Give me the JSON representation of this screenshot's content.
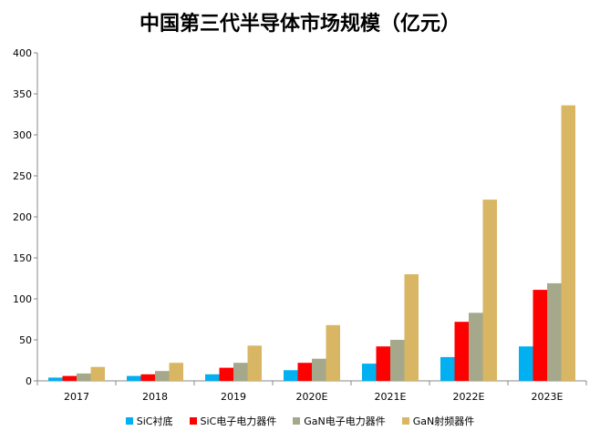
{
  "chart_data": {
    "type": "bar",
    "title": "中国第三代半导体市场规模（亿元）",
    "xlabel": "",
    "ylabel": "",
    "categories": [
      "2017",
      "2018",
      "2019",
      "2020E",
      "2021E",
      "2022E",
      "2023E"
    ],
    "ylim": [
      0,
      400
    ],
    "yticks": [
      0,
      50,
      100,
      150,
      200,
      250,
      300,
      350,
      400
    ],
    "grid": false,
    "legend": "bottom",
    "series": [
      {
        "name": "SiC衬底",
        "color": "#00B0F0",
        "values": [
          4,
          6,
          8,
          13,
          21,
          29,
          42
        ]
      },
      {
        "name": "SiC电子电力器件",
        "color": "#FF0000",
        "values": [
          6,
          8,
          16,
          22,
          42,
          72,
          111
        ]
      },
      {
        "name": "GaN电子电力器件",
        "color": "#A5A88A",
        "values": [
          9,
          12,
          22,
          27,
          50,
          83,
          119
        ]
      },
      {
        "name": "GaN射频器件",
        "color": "#D9B664",
        "values": [
          17,
          22,
          43,
          68,
          130,
          221,
          336
        ]
      }
    ]
  }
}
